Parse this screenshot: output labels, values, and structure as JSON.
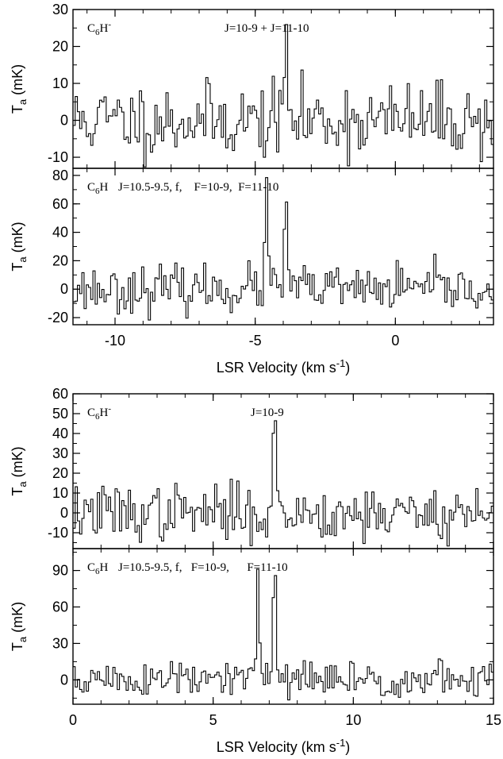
{
  "figure": {
    "ylabel_main": "T",
    "ylabel_sub": "a",
    "ylabel_unit": " (mK)",
    "xlabel_main": "LSR Velocity (km s",
    "xlabel_sup": "-1",
    "xlabel_close": ")"
  },
  "chart_data": [
    {
      "type": "line",
      "title": "",
      "series": [
        {
          "name": "",
          "values": []
        }
      ],
      "mol_base": "C",
      "mol_sub": "6",
      "mol_rest": "H",
      "mol_sup": "-",
      "transition": "J=10-9 + J=11-10",
      "xlim": [
        -11.5,
        3.5
      ],
      "ylim": [
        -13,
        30
      ],
      "yticks": [
        -10,
        0,
        10,
        20,
        30
      ],
      "xticks": [
        -10,
        -5,
        0
      ],
      "xlabel": "",
      "ylabel": "T_a (mK)",
      "peak": {
        "x": -3.9,
        "y": 22
      },
      "noise": 5,
      "seed": 11
    },
    {
      "type": "line",
      "title": "",
      "series": [
        {
          "name": "",
          "values": []
        }
      ],
      "mol_base": "C",
      "mol_sub": "6",
      "mol_rest": "H",
      "mol_sup": "",
      "transition": "J=10.5-9.5, f,    F=10-9,  F=11-10",
      "xlim": [
        -11.5,
        3.5
      ],
      "ylim": [
        -25,
        85
      ],
      "yticks": [
        -20,
        0,
        20,
        40,
        60,
        80
      ],
      "xticks": [
        -10,
        -5,
        0
      ],
      "xticklabels": [
        "-10",
        "-5",
        "0"
      ],
      "xlabel": "LSR Velocity (km s^-1)",
      "ylabel": "T_a (mK)",
      "peaks": [
        {
          "x": -4.6,
          "y": 67
        },
        {
          "x": -3.9,
          "y": 62
        }
      ],
      "noise": 8,
      "seed": 23
    },
    {
      "type": "line",
      "title": "",
      "series": [
        {
          "name": "",
          "values": []
        }
      ],
      "mol_base": "C",
      "mol_sub": "6",
      "mol_rest": "H",
      "mol_sup": "-",
      "transition": "J=10-9",
      "xlim": [
        0,
        15
      ],
      "ylim": [
        -18,
        60
      ],
      "yticks": [
        -10,
        0,
        10,
        20,
        30,
        40,
        50,
        60
      ],
      "xticks": [
        0,
        5,
        10,
        15
      ],
      "xlabel": "",
      "ylabel": "T_a (mK)",
      "peak": {
        "x": 7.2,
        "y": 45
      },
      "noise": 7,
      "seed": 37
    },
    {
      "type": "line",
      "title": "",
      "series": [
        {
          "name": "",
          "values": []
        }
      ],
      "mol_base": "C",
      "mol_sub": "6",
      "mol_rest": "H",
      "mol_sup": "",
      "transition": "J=10.5-9.5, f,   F=10-9,      F=11-10",
      "xlim": [
        0,
        15
      ],
      "ylim": [
        -20,
        108
      ],
      "yticks": [
        0,
        30,
        60,
        90
      ],
      "xticks": [
        0,
        5,
        10,
        15
      ],
      "xticklabels": [
        "0",
        "5",
        "10",
        "15"
      ],
      "xlabel": "LSR Velocity (km s^-1)",
      "ylabel": "T_a (mK)",
      "peaks": [
        {
          "x": 6.6,
          "y": 77
        },
        {
          "x": 7.2,
          "y": 95
        }
      ],
      "noise": 8,
      "seed": 51
    }
  ]
}
